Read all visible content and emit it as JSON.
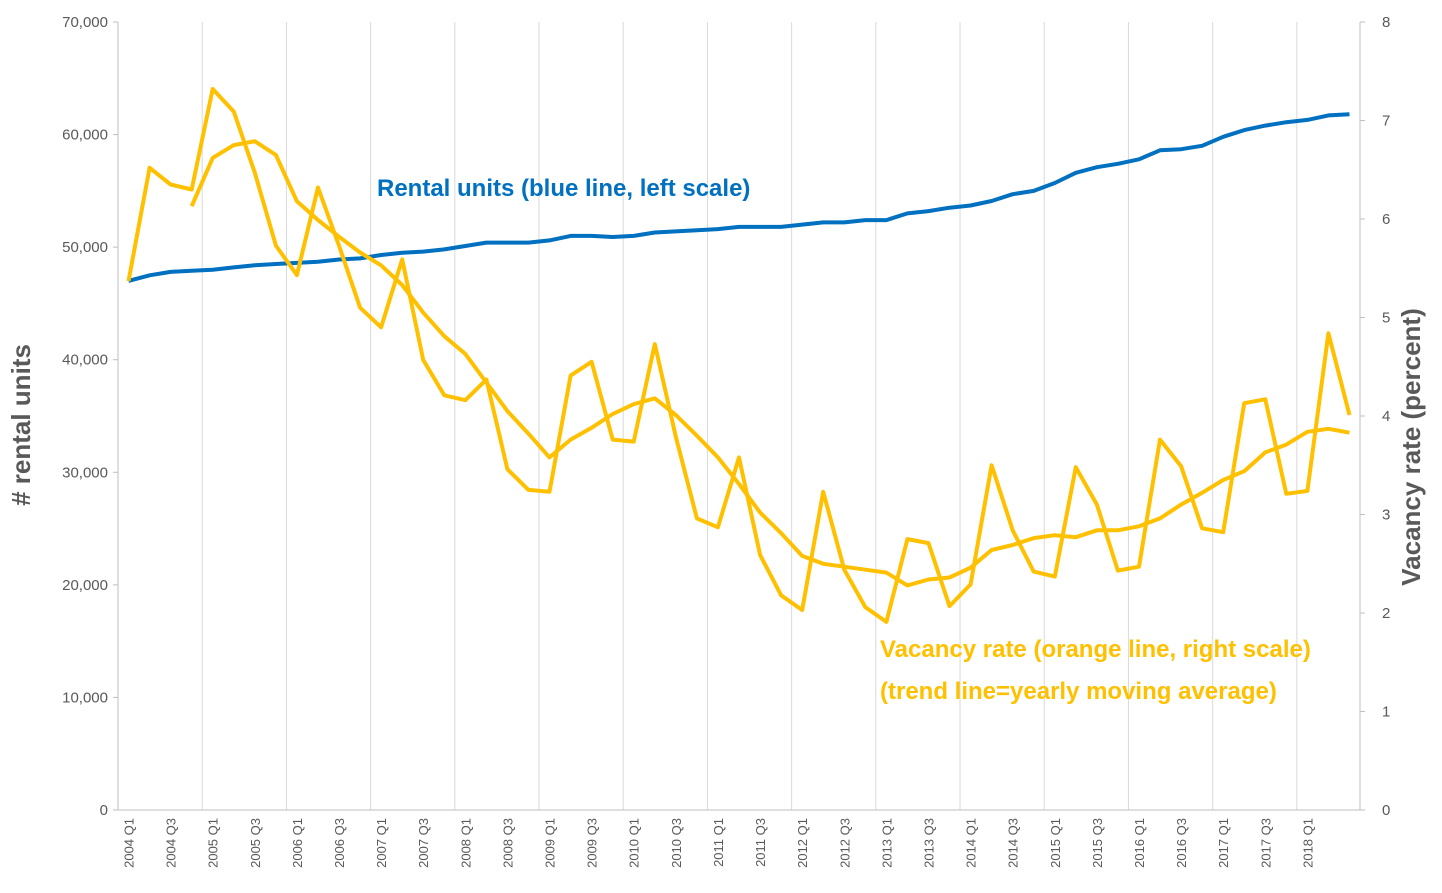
{
  "chart_data": {
    "type": "line",
    "categories": [
      "2004 Q1",
      null,
      "2004 Q3",
      null,
      "2005 Q1",
      null,
      "2005 Q3",
      null,
      "2006 Q1",
      null,
      "2006 Q3",
      null,
      "2007 Q1",
      null,
      "2007 Q3",
      null,
      "2008 Q1",
      null,
      "2008 Q3",
      null,
      "2009 Q1",
      null,
      "2009 Q3",
      null,
      "2010 Q1",
      null,
      "2010 Q3",
      null,
      "2011 Q1",
      null,
      "2011 Q3",
      null,
      "2012 Q1",
      null,
      "2012 Q3",
      null,
      "2013 Q1",
      null,
      "2013 Q3",
      null,
      "2014 Q1",
      null,
      "2014 Q3",
      null,
      "2015 Q1",
      null,
      "2015 Q3",
      null,
      "2016 Q1",
      null,
      "2016 Q3",
      null,
      "2017 Q1",
      null,
      "2017 Q3",
      null,
      "2018 Q1",
      null,
      null
    ],
    "ylabel": "# rental units",
    "y2label": "Vacancy rate (percent)",
    "ylim": [
      0,
      70000
    ],
    "yticks": [
      {
        "value": 0,
        "label": "0"
      },
      {
        "value": 10000,
        "label": "10,000"
      },
      {
        "value": 20000,
        "label": "20,000"
      },
      {
        "value": 30000,
        "label": "30,000"
      },
      {
        "value": 40000,
        "label": "40,000"
      },
      {
        "value": 50000,
        "label": "50,000"
      },
      {
        "value": 60000,
        "label": "60,000"
      },
      {
        "value": 70000,
        "label": "70,000"
      }
    ],
    "y2lim": [
      0,
      8
    ],
    "y2ticks": [
      0,
      1,
      2,
      3,
      4,
      5,
      6,
      7,
      8
    ],
    "grid": {
      "x": true,
      "y": false
    },
    "series": [
      {
        "name": "Rental units (blue line, left scale)",
        "color": "#0070c0",
        "axis": "y",
        "values": [
          47000,
          47500,
          47800,
          47900,
          48000,
          48200,
          48400,
          48500,
          48600,
          48700,
          48900,
          49000,
          49300,
          49500,
          49600,
          49800,
          50100,
          50400,
          50400,
          50400,
          50600,
          51000,
          51000,
          50900,
          51000,
          51300,
          51400,
          51500,
          51600,
          51800,
          51800,
          51800,
          52000,
          52200,
          52200,
          52400,
          52400,
          53000,
          53200,
          53500,
          53700,
          54100,
          54700,
          55000,
          55700,
          56600,
          57100,
          57400,
          57800,
          58600,
          58700,
          59000,
          59800,
          60400,
          60800,
          61100,
          61300,
          61700,
          61800
        ]
      },
      {
        "name": "Vacancy rate (orange line, right scale)",
        "color": "#ffc000",
        "axis": "y2",
        "values": [
          5.37,
          6.52,
          6.35,
          6.3,
          7.32,
          7.09,
          6.47,
          5.73,
          5.43,
          6.32,
          5.73,
          5.1,
          4.9,
          5.59,
          4.57,
          4.21,
          4.16,
          4.37,
          3.46,
          3.25,
          3.23,
          4.41,
          4.55,
          3.76,
          3.74,
          4.73,
          3.79,
          2.96,
          2.87,
          3.58,
          2.59,
          2.18,
          2.03,
          3.23,
          2.44,
          2.06,
          1.91,
          2.75,
          2.71,
          2.07,
          2.29,
          3.5,
          2.84,
          2.42,
          2.37,
          3.48,
          3.1,
          2.43,
          2.47,
          3.76,
          3.49,
          2.86,
          2.82,
          4.13,
          4.17,
          3.21,
          3.24,
          4.84,
          4.01
        ]
      },
      {
        "name": "(trend line=yearly moving average)",
        "color": "#ffc000",
        "axis": "y2",
        "values": [
          null,
          null,
          null,
          6.13,
          6.62,
          6.75,
          6.79,
          6.65,
          6.18,
          5.99,
          5.82,
          5.66,
          5.53,
          5.33,
          5.05,
          4.81,
          4.63,
          4.34,
          4.05,
          3.82,
          3.58,
          3.76,
          3.88,
          4.02,
          4.12,
          4.18,
          4.01,
          3.8,
          3.58,
          3.31,
          3.02,
          2.81,
          2.58,
          2.5,
          2.47,
          2.44,
          2.41,
          2.28,
          2.34,
          2.36,
          2.46,
          2.64,
          2.69,
          2.76,
          2.79,
          2.77,
          2.84,
          2.84,
          2.88,
          2.96,
          3.1,
          3.22,
          3.35,
          3.44,
          3.63,
          3.71,
          3.84,
          3.87,
          3.83
        ]
      }
    ]
  }
}
